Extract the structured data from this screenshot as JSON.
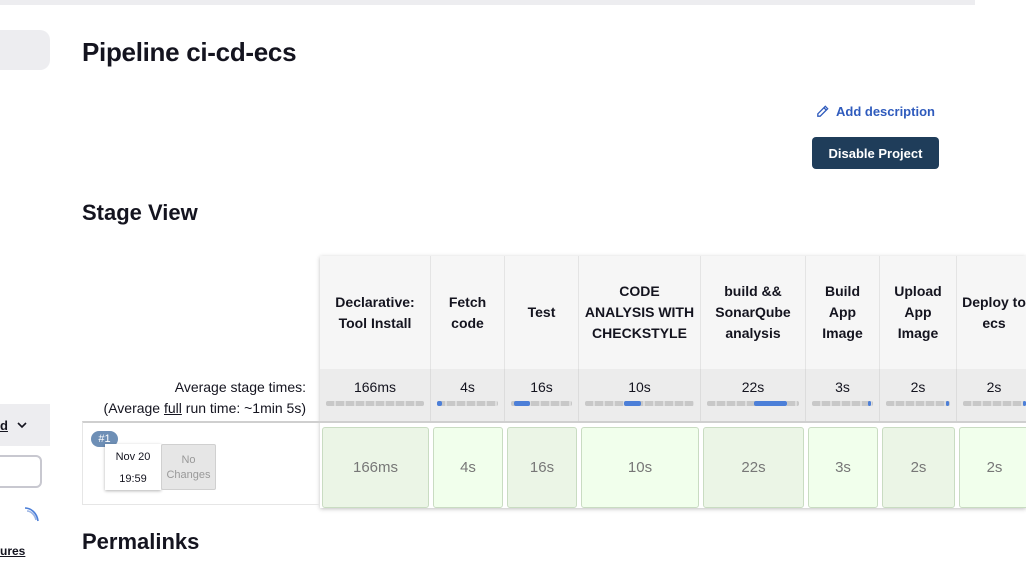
{
  "header": {
    "title": "Pipeline ci-cd-ecs",
    "add_description": "Add description",
    "disable_button": "Disable Project"
  },
  "stage_view": {
    "title": "Stage View",
    "avg_label_line1": "Average stage times:",
    "avg_label_line2_pre": "(Average ",
    "avg_label_line2_link": "full",
    "avg_label_line2_post": " run time: ~1min 5s)",
    "stages": [
      {
        "name": "Declarative: Tool Install",
        "avg": "166ms",
        "time": "166ms",
        "fill": [
          0,
          0
        ]
      },
      {
        "name": "Fetch code",
        "avg": "4s",
        "time": "4s",
        "fill": [
          0,
          0.08
        ]
      },
      {
        "name": "Test",
        "avg": "16s",
        "time": "16s",
        "fill": [
          0.05,
          0.3
        ]
      },
      {
        "name": "CODE ANALYSIS WITH CHECKSTYLE",
        "avg": "10s",
        "time": "10s",
        "fill": [
          0.35,
          0.5
        ]
      },
      {
        "name": "build && SonarQube analysis",
        "avg": "22s",
        "time": "22s",
        "fill": [
          0.5,
          0.85
        ]
      },
      {
        "name": "Build App Image",
        "avg": "3s",
        "time": "3s",
        "fill": [
          0.9,
          0.95
        ]
      },
      {
        "name": "Upload App Image",
        "avg": "2s",
        "time": "2s",
        "fill": [
          0.92,
          0.97
        ]
      },
      {
        "name": "Deploy to ecs",
        "avg": "2s",
        "time": "2s",
        "fill": [
          0.95,
          1.0
        ]
      }
    ],
    "run": {
      "badge": "#1",
      "date": "Nov 20",
      "time": "19:59",
      "changes": "No Changes"
    }
  },
  "permalinks": {
    "title": "Permalinks"
  },
  "sidebar": {
    "dropdown_text": "d",
    "link_text": "ures"
  }
}
